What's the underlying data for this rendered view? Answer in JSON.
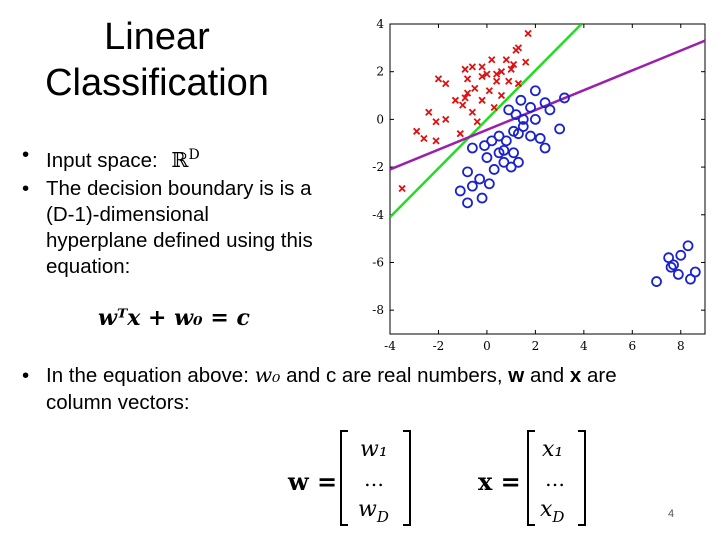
{
  "slide": {
    "title_line1": "Linear",
    "title_line2": "Classification",
    "bullet1_text": "Input space:",
    "bullet1_symbol": "ℝ",
    "bullet1_sup": "D",
    "bullet2_text": "The decision boundary is is a (D-1)-dimensional hyperplane  defined using this equation:",
    "equation": "wᵀx + w₀ = c",
    "bullet3_prefix": "In the equation above:",
    "bullet3_w0": "w₀",
    "bullet3_mid": "and c are real numbers,",
    "bullet3_w": "w",
    "bullet3_and": "and",
    "bullet3_x": "x",
    "bullet3_suffix": "are",
    "bullet3_line2": "column vectors:",
    "vec_w_label": "w =",
    "vec_w_entries": [
      "w₁",
      "…",
      "w_D"
    ],
    "vec_x_label": "x =",
    "vec_x_entries": [
      "x₁",
      "…",
      "x_D"
    ],
    "page_number": "4"
  },
  "colors": {
    "class_red": "#dd1111",
    "class_blue": "#1a22cc",
    "line_green": "#22dd22",
    "line_purple": "#9b1faa"
  },
  "chart_data": {
    "type": "scatter",
    "title": "",
    "xlabel": "",
    "ylabel": "",
    "xlim": [
      -4,
      9
    ],
    "ylim": [
      -9,
      4
    ],
    "xticks": [
      "-4",
      "-2",
      "0",
      "2",
      "4",
      "6",
      "8"
    ],
    "yticks": [
      "4",
      "2",
      "0",
      "-2",
      "-4",
      "-6",
      "-8"
    ],
    "series": [
      {
        "marker": "x",
        "color": "#dd1111",
        "points": [
          [
            1.7,
            3.6
          ],
          [
            1.2,
            2.9
          ],
          [
            1.3,
            3.0
          ],
          [
            0.8,
            2.5
          ],
          [
            1.1,
            2.3
          ],
          [
            1.6,
            2.4
          ],
          [
            0.2,
            2.5
          ],
          [
            -0.2,
            2.2
          ],
          [
            -0.6,
            2.2
          ],
          [
            -0.9,
            2.1
          ],
          [
            0.0,
            1.9
          ],
          [
            0.6,
            2.0
          ],
          [
            1.0,
            2.1
          ],
          [
            -2.0,
            1.7
          ],
          [
            -1.7,
            1.5
          ],
          [
            -0.8,
            1.7
          ],
          [
            -0.2,
            1.8
          ],
          [
            0.4,
            1.9
          ],
          [
            0.9,
            1.6
          ],
          [
            1.3,
            1.5
          ],
          [
            -0.5,
            1.3
          ],
          [
            0.1,
            1.2
          ],
          [
            0.6,
            1.0
          ],
          [
            -0.9,
            0.9
          ],
          [
            -1.3,
            0.8
          ],
          [
            -0.2,
            0.8
          ],
          [
            0.3,
            0.5
          ],
          [
            -2.4,
            0.3
          ],
          [
            -2.1,
            -0.1
          ],
          [
            -1.7,
            0.0
          ],
          [
            -1.0,
            0.6
          ],
          [
            -0.6,
            0.3
          ],
          [
            -2.1,
            -0.9
          ],
          [
            -2.9,
            -0.5
          ],
          [
            -2.6,
            -0.8
          ],
          [
            -1.1,
            -0.6
          ],
          [
            -0.4,
            -0.1
          ],
          [
            -0.8,
            1.1
          ],
          [
            0.4,
            1.6
          ],
          [
            -3.5,
            -2.9
          ]
        ]
      },
      {
        "marker": "o",
        "color": "#1a22cc",
        "points": [
          [
            2.0,
            1.2
          ],
          [
            2.4,
            0.7
          ],
          [
            3.2,
            0.9
          ],
          [
            1.4,
            0.8
          ],
          [
            1.8,
            0.5
          ],
          [
            2.6,
            0.4
          ],
          [
            0.9,
            0.4
          ],
          [
            1.2,
            0.2
          ],
          [
            1.5,
            0.0
          ],
          [
            2.0,
            0.0
          ],
          [
            3.0,
            -0.4
          ],
          [
            1.1,
            -0.5
          ],
          [
            1.5,
            -0.3
          ],
          [
            1.8,
            -0.7
          ],
          [
            0.5,
            -0.7
          ],
          [
            0.8,
            -0.9
          ],
          [
            1.3,
            -0.6
          ],
          [
            2.2,
            -0.8
          ],
          [
            2.4,
            -1.2
          ],
          [
            -0.6,
            -1.2
          ],
          [
            -0.1,
            -1.1
          ],
          [
            0.2,
            -0.9
          ],
          [
            0.5,
            -1.4
          ],
          [
            0.0,
            -1.6
          ],
          [
            1.1,
            -1.4
          ],
          [
            1.3,
            -1.8
          ],
          [
            0.7,
            -1.8
          ],
          [
            -0.8,
            -2.2
          ],
          [
            -0.3,
            -2.5
          ],
          [
            0.3,
            -2.1
          ],
          [
            -1.1,
            -3.0
          ],
          [
            -0.6,
            -2.8
          ],
          [
            0.1,
            -2.7
          ],
          [
            -0.2,
            -3.3
          ],
          [
            -0.8,
            -3.5
          ],
          [
            0.7,
            -1.3
          ],
          [
            1.0,
            -2.0
          ],
          [
            7.0,
            -6.8
          ],
          [
            7.5,
            -5.8
          ],
          [
            7.7,
            -6.1
          ],
          [
            8.0,
            -5.7
          ],
          [
            8.3,
            -5.3
          ],
          [
            7.9,
            -6.5
          ],
          [
            8.4,
            -6.7
          ],
          [
            8.6,
            -6.4
          ],
          [
            7.6,
            -6.2
          ]
        ]
      }
    ],
    "lines": [
      {
        "color": "#22dd22",
        "from": [
          -4,
          -4.1
        ],
        "to": [
          3.9,
          4.0
        ]
      },
      {
        "color": "#9b1faa",
        "from": [
          -4,
          -2.1
        ],
        "to": [
          9,
          3.3
        ]
      }
    ]
  }
}
